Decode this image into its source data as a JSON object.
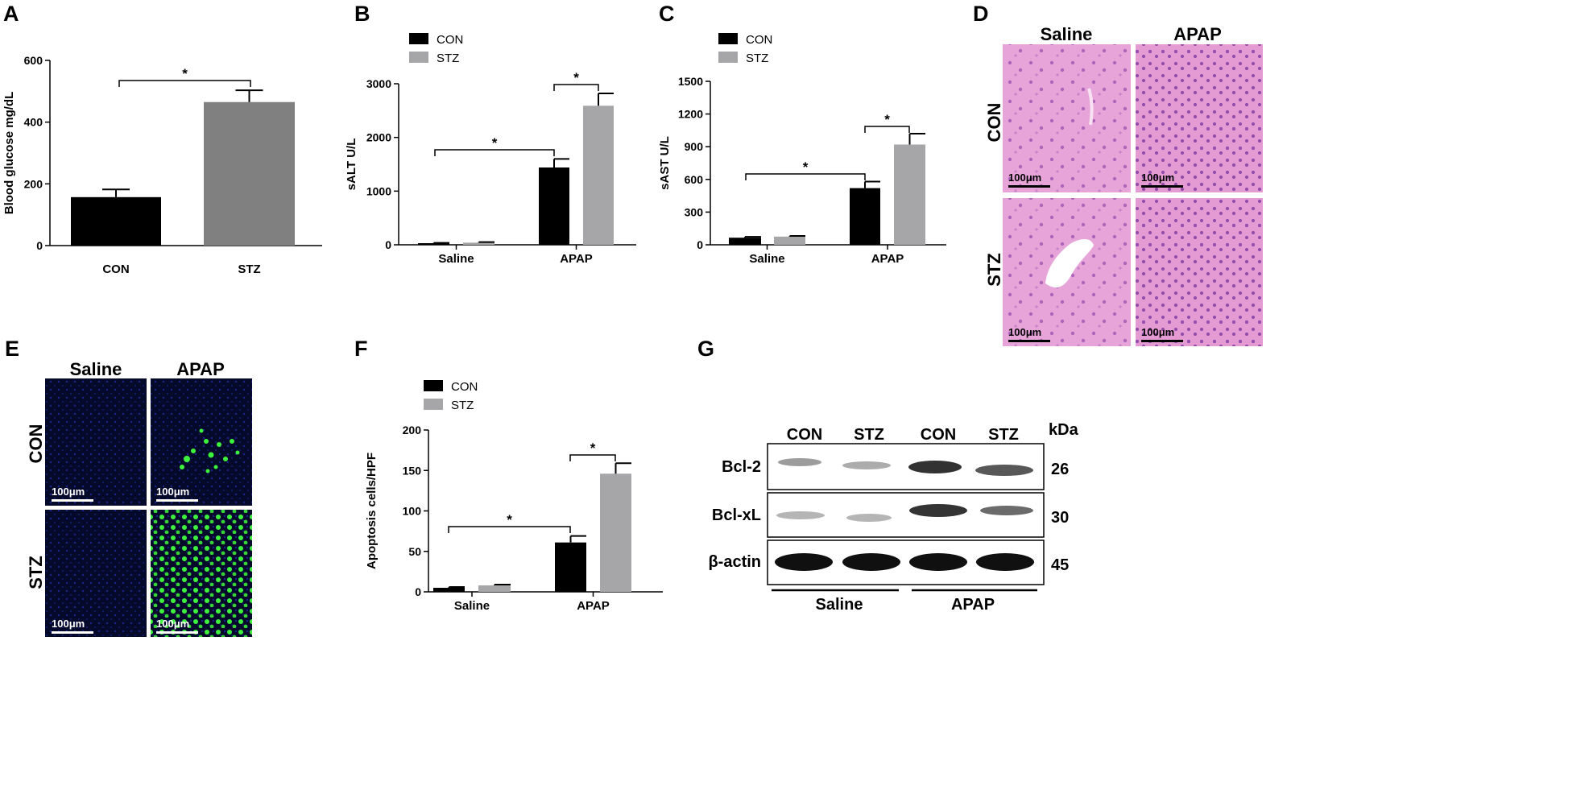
{
  "colors": {
    "con": "#000000",
    "stz_a": "#808080",
    "stz": "#a6a6a9",
    "he": "#e7a4d8",
    "fluor_bg": "#060a2a",
    "fluor_dot": "#3df23d"
  },
  "panels": {
    "A": {
      "letter": "A"
    },
    "B": {
      "letter": "B"
    },
    "C": {
      "letter": "C"
    },
    "D": {
      "letter": "D",
      "cols": [
        "Saline",
        "APAP"
      ],
      "rows": [
        "CON",
        "STZ"
      ],
      "scalebar": "100μm"
    },
    "E": {
      "letter": "E",
      "cols": [
        "Saline",
        "APAP"
      ],
      "rows": [
        "CON",
        "STZ"
      ],
      "scalebar": "100μm"
    },
    "F": {
      "letter": "F"
    },
    "G": {
      "letter": "G",
      "lanes": [
        "CON",
        "STZ",
        "CON",
        "STZ"
      ],
      "unit": "kDa",
      "proteins": [
        {
          "name": "Bcl-2",
          "kda": "26"
        },
        {
          "name": "Bcl-xL",
          "kda": "30"
        },
        {
          "name": "β-actin",
          "kda": "45"
        }
      ],
      "groups": [
        "Saline",
        "APAP"
      ]
    }
  },
  "chart_data": [
    {
      "panel": "A",
      "type": "bar",
      "categories": [
        "CON",
        "STZ"
      ],
      "values": [
        157,
        465
      ],
      "errors": [
        25,
        38
      ],
      "ylabel": "Blood glucose mg/dL",
      "ylim": [
        0,
        600
      ],
      "yticks": [
        "0",
        "200",
        "400",
        "600"
      ],
      "significance": [
        {
          "label": "*"
        }
      ]
    },
    {
      "panel": "B",
      "type": "bar",
      "categories": [
        "Saline",
        "APAP"
      ],
      "series": [
        {
          "name": "CON",
          "values": [
            30,
            1440
          ],
          "errors": [
            5,
            160
          ]
        },
        {
          "name": "STZ",
          "values": [
            40,
            2590
          ],
          "errors": [
            10,
            230
          ]
        }
      ],
      "ylabel": "sALT U/L",
      "ylim": [
        0,
        3000
      ],
      "yticks": [
        "0",
        "1000",
        "2000",
        "3000"
      ],
      "significance": [
        {
          "label": "*"
        },
        {
          "label": "*"
        }
      ]
    },
    {
      "panel": "C",
      "type": "bar",
      "categories": [
        "Saline",
        "APAP"
      ],
      "series": [
        {
          "name": "CON",
          "values": [
            65,
            520
          ],
          "errors": [
            8,
            60
          ]
        },
        {
          "name": "STZ",
          "values": [
            75,
            920
          ],
          "errors": [
            6,
            100
          ]
        }
      ],
      "ylabel": "sAST U/L",
      "ylim": [
        0,
        1500
      ],
      "yticks": [
        "0",
        "300",
        "600",
        "900",
        "1200",
        "1500"
      ],
      "significance": [
        {
          "label": "*"
        },
        {
          "label": "*"
        }
      ]
    },
    {
      "panel": "F",
      "type": "bar",
      "categories": [
        "Saline",
        "APAP"
      ],
      "series": [
        {
          "name": "CON",
          "values": [
            5,
            61
          ],
          "errors": [
            1,
            8
          ]
        },
        {
          "name": "STZ",
          "values": [
            8,
            146
          ],
          "errors": [
            1,
            13
          ]
        }
      ],
      "ylabel": "Apoptosis cells/HPF",
      "ylim": [
        0,
        200
      ],
      "yticks": [
        "0",
        "50",
        "100",
        "150",
        "200"
      ],
      "significance": [
        {
          "label": "*"
        },
        {
          "label": "*"
        }
      ]
    }
  ]
}
